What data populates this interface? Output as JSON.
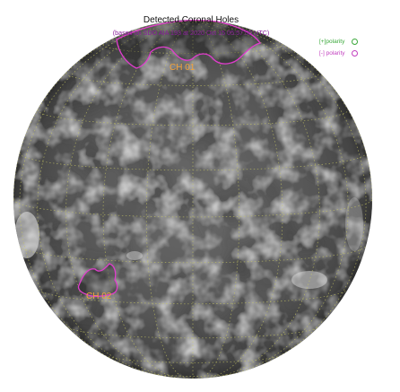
{
  "figure": {
    "title": "Detected Coronal Holes",
    "subtitle": "(based on SDO AIA 193 at 2020 Oct 15 05:57:00 UTC)"
  },
  "legend": {
    "positive_label": "[+]polarity",
    "negative_label": "[-] polarity",
    "positive_color": "#3aa83a",
    "negative_color": "#c23fbf"
  },
  "coronal_holes": [
    {
      "label": "CH 01",
      "polarity": "negative"
    },
    {
      "label": "CH 02",
      "polarity": "negative"
    }
  ],
  "colors": {
    "label_color": "#f2a23a",
    "grid_color": "#c8c864",
    "contour_color": "#e03ccd"
  }
}
